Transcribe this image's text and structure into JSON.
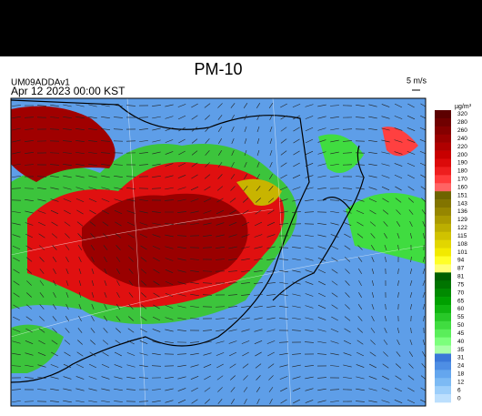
{
  "header": {
    "title": "PM-10",
    "model": "UM09ADDAv1",
    "time": "Apr 12 2023 00:00 KST",
    "wind_scale": "5 m/s"
  },
  "colorbar": {
    "unit": "µg/m³",
    "levels": [
      320,
      280,
      260,
      240,
      220,
      200,
      190,
      180,
      170,
      160,
      151,
      143,
      136,
      129,
      122,
      115,
      108,
      101,
      94,
      87,
      81,
      75,
      70,
      65,
      60,
      55,
      50,
      45,
      40,
      35,
      31,
      24,
      18,
      12,
      6,
      0
    ],
    "colors": [
      "#5c0000",
      "#700000",
      "#850000",
      "#9a0000",
      "#b00000",
      "#c80000",
      "#dc0a0a",
      "#ee1e1e",
      "#ff3c3c",
      "#ff6464",
      "#6e6400",
      "#827400",
      "#968600",
      "#aa9a00",
      "#bcae00",
      "#d0c200",
      "#e2d600",
      "#f2ea00",
      "#ffff28",
      "#ffff78",
      "#006000",
      "#007400",
      "#008a00",
      "#00a000",
      "#10b410",
      "#28c828",
      "#40dc40",
      "#5aee5a",
      "#7cff7c",
      "#a8ffa8",
      "#3a78d8",
      "#4e8ee4",
      "#64a6ee",
      "#7cbaf4",
      "#9ccefa",
      "#bcdffd"
    ]
  }
}
